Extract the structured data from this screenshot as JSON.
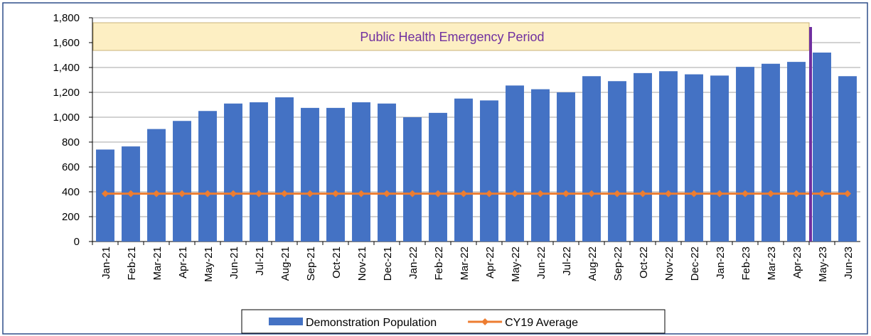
{
  "chart_data": {
    "type": "bar",
    "annotation": "Public Health Emergency Period",
    "categories": [
      "Jan-21",
      "Feb-21",
      "Mar-21",
      "Apr-21",
      "May-21",
      "Jun-21",
      "Jul-21",
      "Aug-21",
      "Sep-21",
      "Oct-21",
      "Nov-21",
      "Dec-21",
      "Jan-22",
      "Feb-22",
      "Mar-22",
      "Apr-22",
      "May-22",
      "Jun-22",
      "Jul-22",
      "Aug-22",
      "Sep-22",
      "Oct-22",
      "Nov-22",
      "Dec-22",
      "Jan-23",
      "Feb-23",
      "Mar-23",
      "Apr-23",
      "May-23",
      "Jun-23"
    ],
    "series": [
      {
        "name": "Demonstration Population",
        "type": "bar",
        "color": "#4472c4",
        "values": [
          740,
          765,
          905,
          970,
          1050,
          1110,
          1120,
          1160,
          1075,
          1075,
          1120,
          1110,
          1000,
          1035,
          1150,
          1135,
          1255,
          1225,
          1200,
          1330,
          1290,
          1355,
          1370,
          1345,
          1335,
          1405,
          1430,
          1445,
          1520,
          1330
        ]
      },
      {
        "name": "CY19 Average",
        "type": "line",
        "color": "#ed7d31",
        "values": [
          385,
          385,
          385,
          385,
          385,
          385,
          385,
          385,
          385,
          385,
          385,
          385,
          385,
          385,
          385,
          385,
          385,
          385,
          385,
          385,
          385,
          385,
          385,
          385,
          385,
          385,
          385,
          385,
          385,
          385
        ]
      }
    ],
    "ylim": [
      0,
      1800
    ],
    "yticks": [
      0,
      200,
      400,
      600,
      800,
      {
        "value": 1000,
        "label": "1,000"
      },
      {
        "value": 1200,
        "label": "1,200"
      },
      {
        "value": 1400,
        "label": "1,400"
      },
      {
        "value": 1600,
        "label": "1,600"
      },
      {
        "value": 1800,
        "label": "1,800"
      }
    ],
    "grid": true,
    "legend": "bottom"
  }
}
